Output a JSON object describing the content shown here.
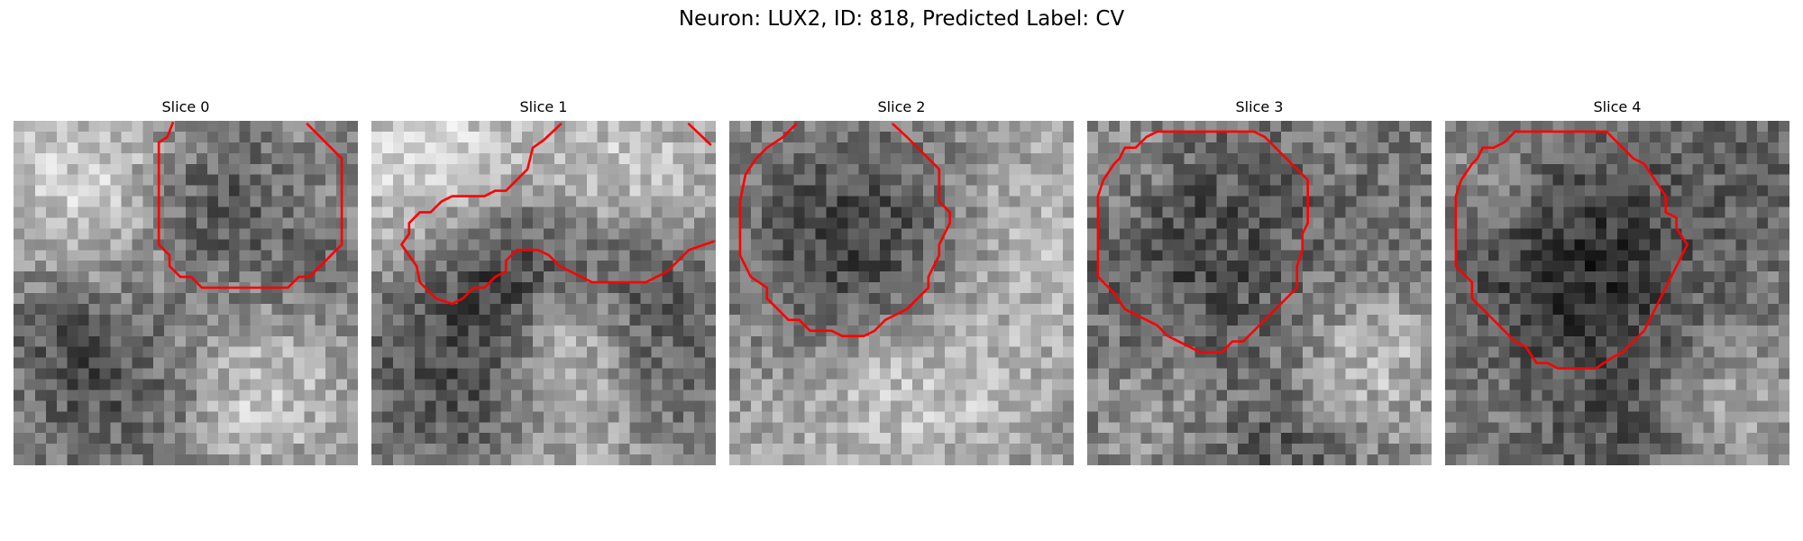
{
  "figure": {
    "title": "Neuron: LUX2, ID: 818, Predicted Label: CV"
  },
  "panels": [
    {
      "title": "Slice 0"
    },
    {
      "title": "Slice 1"
    },
    {
      "title": "Slice 2"
    },
    {
      "title": "Slice 3"
    },
    {
      "title": "Slice 4"
    }
  ],
  "colors": {
    "contour": "#ff0000",
    "background": "#ffffff"
  }
}
